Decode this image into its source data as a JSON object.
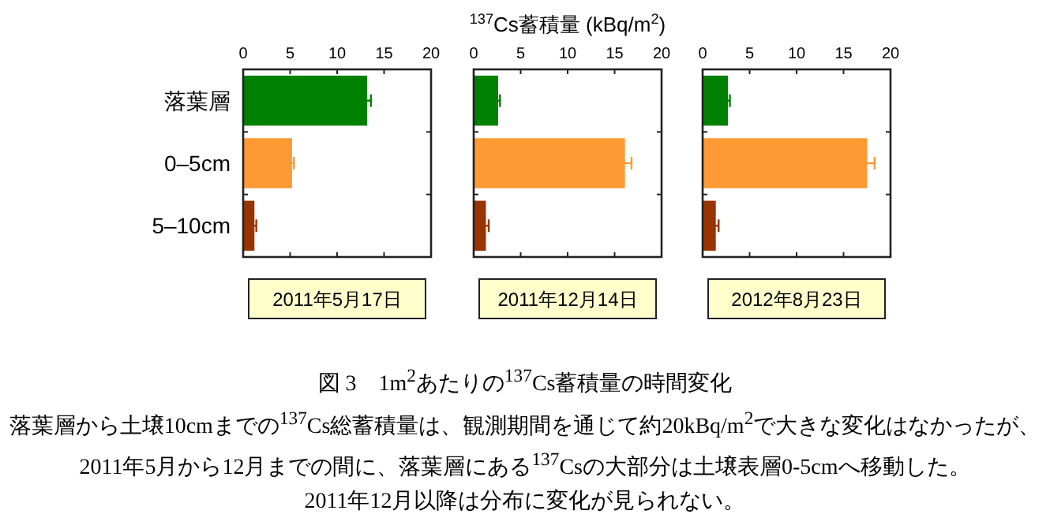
{
  "chart_data": [
    {
      "type": "bar",
      "orientation": "horizontal",
      "title": "2011年5月17日",
      "categories": [
        "落葉層",
        "0–5cm",
        "5–10cm"
      ],
      "values": [
        13.2,
        5.2,
        1.2
      ],
      "errors": [
        0.4,
        0.2,
        0.2
      ],
      "colors": [
        "#008000",
        "#ff9933",
        "#993300"
      ],
      "xlim": [
        0,
        20
      ],
      "xticks": [
        0,
        5,
        10,
        15,
        20
      ]
    },
    {
      "type": "bar",
      "orientation": "horizontal",
      "title": "2011年12月14日",
      "xlabel": "$^{137}$Cs蓄積量 (kBq/m$^{2}$)",
      "categories": [
        null,
        null,
        null
      ],
      "values": [
        2.6,
        16.1,
        1.3
      ],
      "errors": [
        0.2,
        0.7,
        0.3
      ],
      "colors": [
        "#008000",
        "#ff9933",
        "#993300"
      ],
      "xlim": [
        0,
        20
      ],
      "xticks": [
        0,
        5,
        10,
        15,
        20
      ]
    },
    {
      "type": "bar",
      "orientation": "horizontal",
      "title": "2012年8月23日",
      "categories": [
        null,
        null,
        null
      ],
      "values": [
        2.7,
        17.5,
        1.4
      ],
      "errors": [
        0.2,
        0.8,
        0.3
      ],
      "colors": [
        "#008000",
        "#ff9933",
        "#993300"
      ],
      "xlim": [
        0,
        20
      ],
      "xticks": [
        0,
        5,
        10,
        15,
        20
      ]
    },
    {
      "type": "other",
      "title": "図 3　1m$^{2}$あたりの$^{137}$Cs蓄積量の時間変化",
      "annotations": [
        "落葉層から土壌10cmまでの$^{137}$Cs総蓄積量は、観測期間を通じて約20kBq/m$^{2}$で大きな変化はなかったが、2011年5月から12月までの間に、落葉層にある$^{137}$Csの大部分は土壌表層0-5cmへ移動した。",
        "2011年12月以降は分布に変化が見られない。"
      ]
    }
  ]
}
